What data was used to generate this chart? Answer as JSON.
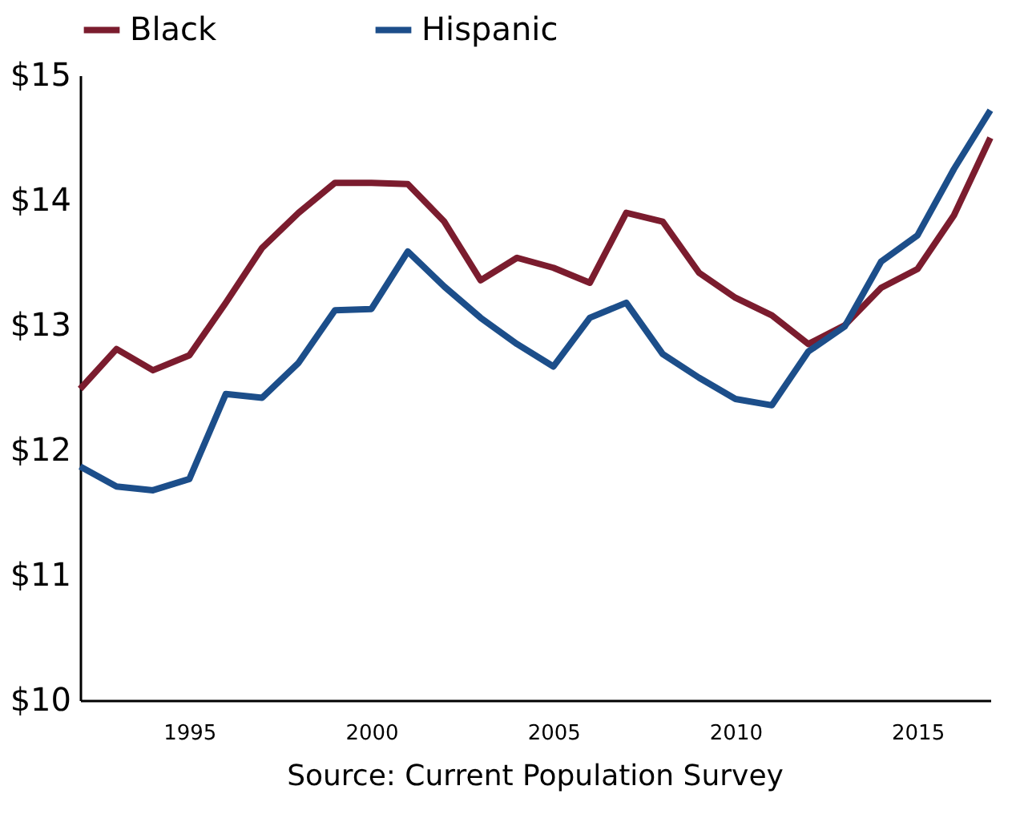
{
  "chart_data": {
    "type": "line",
    "x": [
      1992,
      1993,
      1994,
      1995,
      1996,
      1997,
      1998,
      1999,
      2000,
      2001,
      2002,
      2003,
      2004,
      2005,
      2006,
      2007,
      2008,
      2009,
      2010,
      2011,
      2012,
      2013,
      2014,
      2015,
      2016,
      2017
    ],
    "series": [
      {
        "name": "Black",
        "color": "#7b1c2e",
        "values": [
          12.49,
          12.81,
          12.64,
          12.76,
          13.18,
          13.62,
          13.9,
          14.14,
          14.14,
          14.13,
          13.83,
          13.36,
          13.54,
          13.46,
          13.34,
          13.9,
          13.83,
          13.42,
          13.22,
          13.08,
          12.85,
          13.0,
          13.3,
          13.45,
          13.88,
          14.5
        ]
      },
      {
        "name": "Hispanic",
        "color": "#1c4e8a",
        "values": [
          11.87,
          11.71,
          11.68,
          11.77,
          12.45,
          12.42,
          12.7,
          13.12,
          13.13,
          13.59,
          13.31,
          13.06,
          12.85,
          12.67,
          13.06,
          13.18,
          12.77,
          12.58,
          12.41,
          12.36,
          12.79,
          12.99,
          13.51,
          13.72,
          14.25,
          14.72
        ]
      }
    ],
    "xlim": [
      1992,
      2017
    ],
    "xticks": [
      1995,
      2000,
      2005,
      2010,
      2015
    ],
    "ylim": [
      10,
      15
    ],
    "yticks": [
      {
        "value": 10,
        "label": "$10"
      },
      {
        "value": 11,
        "label": "$11"
      },
      {
        "value": 12,
        "label": "$12"
      },
      {
        "value": 13,
        "label": "$13"
      },
      {
        "value": 14,
        "label": "$14"
      },
      {
        "value": 15,
        "label": "$15"
      }
    ],
    "grid": false,
    "legend": "top",
    "marker": "none",
    "line_style": "solid",
    "annotations": [
      "Source: Current Population Survey"
    ]
  }
}
